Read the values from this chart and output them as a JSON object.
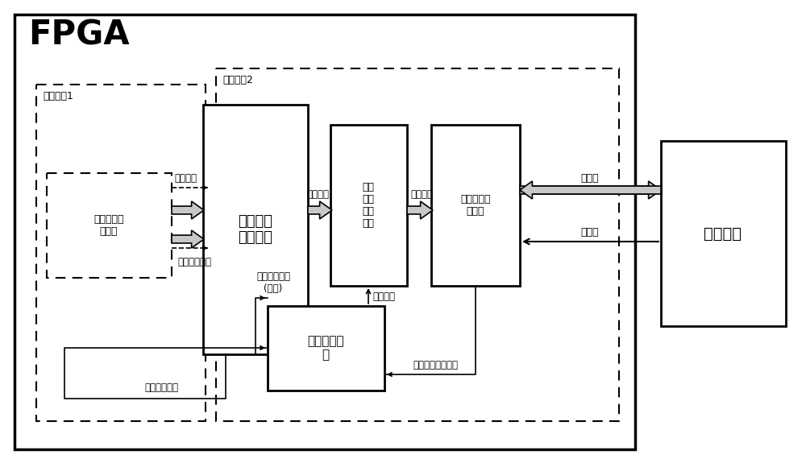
{
  "bg_color": "#ffffff",
  "title": "FPGA",
  "labels": {
    "clock1": "时钟区域1",
    "clock2": "时钟区域2",
    "waveform_collect": "波形数据采\n集模块",
    "cross_clock": "数据跨时\n钟域模块",
    "candidate_store": "波形\n数据\n候选\n存储",
    "mcu_interface": "微处理器接\n口模块",
    "conflict_detect": "冲突检测模\n块",
    "microcontroller": "微控制器",
    "waveform_data1": "波形数据",
    "waveform_data2": "波形数据",
    "waveform_data3": "波形数据",
    "valid_signal": "数据有效信号",
    "read_request": "读取请求信号\n(两次)",
    "conflict_signal": "冲突信号",
    "read_waveform": "读取波形数据信号",
    "data_expand": "数据展宽信号",
    "data_line": "数据线",
    "control_line": "控制线"
  }
}
